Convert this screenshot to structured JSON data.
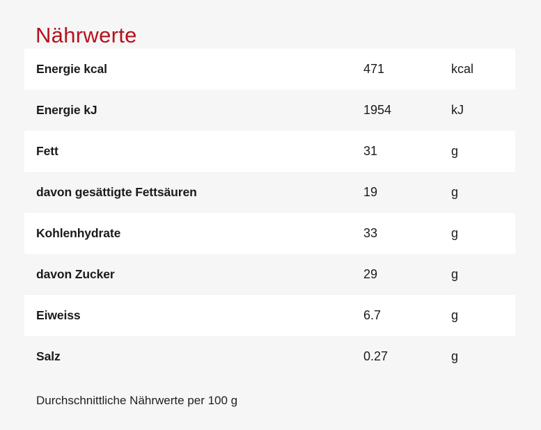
{
  "page": {
    "title": "Nährwerte",
    "background_color": "#f6f6f6",
    "accent_color": "#b5121d",
    "row_color": "#ffffff",
    "text_color": "#1a1a1a"
  },
  "table": {
    "rows": [
      {
        "label": "Energie kcal",
        "value": "471",
        "unit": "kcal"
      },
      {
        "label": "Energie kJ",
        "value": "1954",
        "unit": "kJ"
      },
      {
        "label": "Fett",
        "value": "31",
        "unit": "g"
      },
      {
        "label": "davon gesättigte Fettsäuren",
        "value": "19",
        "unit": "g"
      },
      {
        "label": "Kohlenhydrate",
        "value": "33",
        "unit": "g"
      },
      {
        "label": "davon Zucker",
        "value": "29",
        "unit": "g"
      },
      {
        "label": "Eiweiss",
        "value": "6.7",
        "unit": "g"
      },
      {
        "label": "Salz",
        "value": "0.27",
        "unit": "g"
      }
    ],
    "footnote": "Durchschnittliche Nährwerte per 100 g"
  }
}
